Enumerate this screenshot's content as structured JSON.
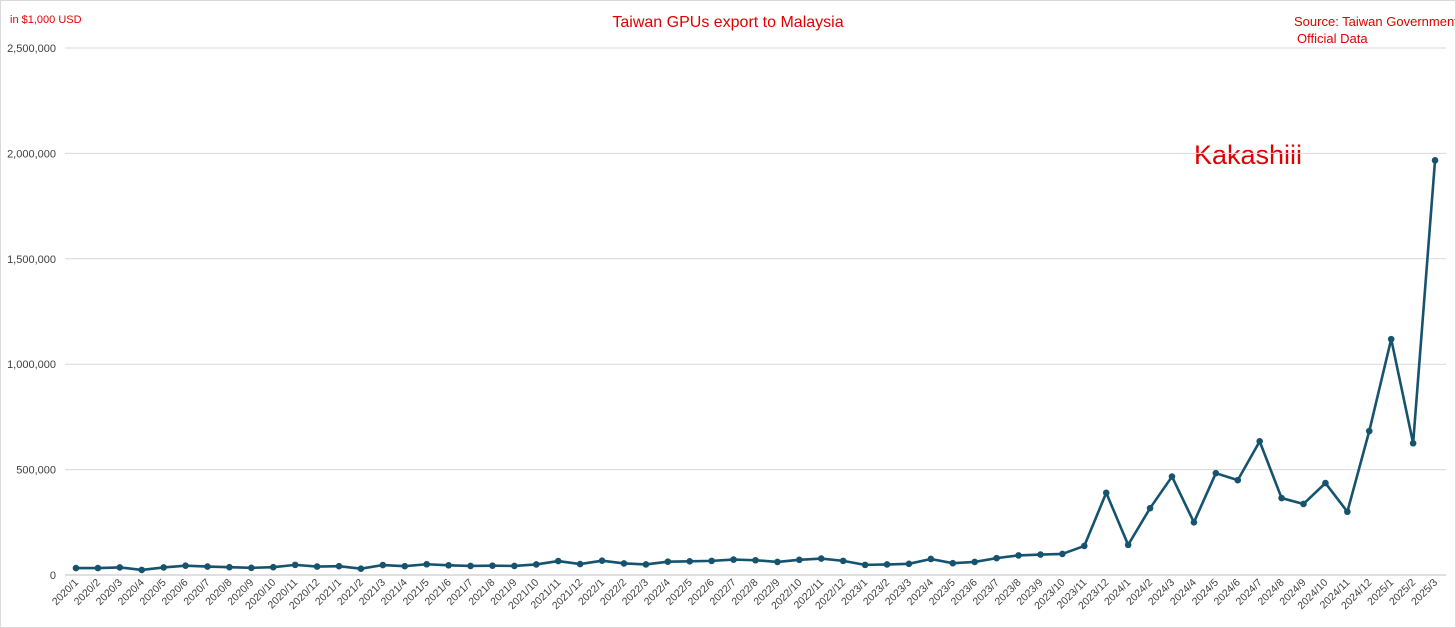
{
  "chart_data": {
    "type": "line",
    "title": "Taiwan GPUs export to Malaysia",
    "unit_label": "in $1,000 USD",
    "source_line1": "Source: Taiwan Government",
    "source_line2": "Official Data",
    "watermark": "Kakashiii",
    "ylim": [
      0,
      2500000
    ],
    "yticks": [
      0,
      500000,
      1000000,
      1500000,
      2000000,
      2500000
    ],
    "ytick_labels": [
      "0",
      "500,000",
      "1,000,000",
      "1,500,000",
      "2,000,000",
      "2,500,000"
    ],
    "grid": true,
    "legend": "none",
    "colors": {
      "line": "#15536f",
      "text_accent": "#e00000",
      "grid": "#d9d9d9",
      "tick_text": "#404040"
    },
    "x": [
      "2020/1",
      "2020/2",
      "2020/3",
      "2020/4",
      "2020/5",
      "2020/6",
      "2020/7",
      "2020/8",
      "2020/9",
      "2020/10",
      "2020/11",
      "2020/12",
      "2021/1",
      "2021/2",
      "2021/3",
      "2021/4",
      "2021/5",
      "2021/6",
      "2021/7",
      "2021/8",
      "2021/9",
      "2021/10",
      "2021/11",
      "2021/12",
      "2022/1",
      "2022/2",
      "2022/3",
      "2022/4",
      "2022/5",
      "2022/6",
      "2022/7",
      "2022/8",
      "2022/9",
      "2022/10",
      "2022/11",
      "2022/12",
      "2023/1",
      "2023/2",
      "2023/3",
      "2023/4",
      "2023/5",
      "2023/6",
      "2023/7",
      "2023/8",
      "2023/9",
      "2023/10",
      "2023/11",
      "2023/12",
      "2024/1",
      "2024/2",
      "2024/3",
      "2024/4",
      "2024/5",
      "2024/6",
      "2024/7",
      "2024/8",
      "2024/9",
      "2024/10",
      "2024/11",
      "2024/12",
      "2025/1",
      "2025/2",
      "2025/3"
    ],
    "series": [
      {
        "values": [
          33000,
          33000,
          36000,
          24000,
          36000,
          44000,
          40000,
          37000,
          34000,
          37000,
          48000,
          40000,
          42000,
          30000,
          47000,
          42000,
          51000,
          46000,
          43000,
          44000,
          43000,
          50000,
          66000,
          52000,
          68000,
          55000,
          50000,
          63000,
          65000,
          67000,
          73000,
          70000,
          62000,
          72000,
          78000,
          67000,
          48000,
          50000,
          53000,
          76000,
          56000,
          62000,
          80000,
          93000,
          97000,
          100000,
          138000,
          390000,
          143000,
          317000,
          467000,
          250000,
          483000,
          450000,
          634000,
          365000,
          337000,
          436000,
          300000,
          683000,
          1119000,
          625000,
          1967000
        ]
      }
    ]
  }
}
